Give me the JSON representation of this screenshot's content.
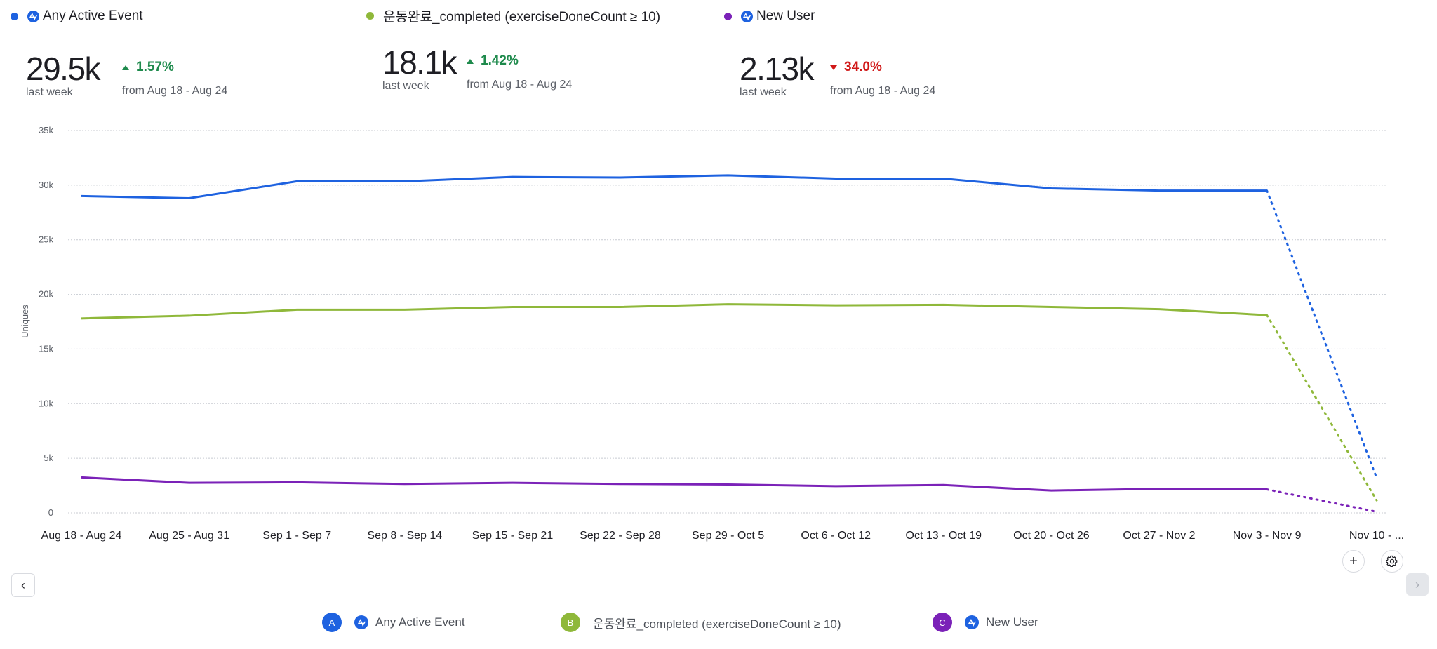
{
  "series_colors": {
    "A": "#1e62e0",
    "B": "#8fb83a",
    "C": "#7b22b8"
  },
  "top_legend": [
    {
      "label": "Any Active Event",
      "color": "#1e62e0",
      "icon": "amplitude-icon"
    },
    {
      "label": "운동완료_completed (exerciseDoneCount ≥ 10)",
      "color": "#8fb83a",
      "icon": null
    },
    {
      "label": "New User",
      "color": "#7b22b8",
      "icon": "amplitude-icon"
    }
  ],
  "metrics": [
    {
      "value": "29.5k",
      "period": "last week",
      "delta": "1.57%",
      "direction": "up",
      "from": "from Aug 18 - Aug 24"
    },
    {
      "value": "18.1k",
      "period": "last week",
      "delta": "1.42%",
      "direction": "up",
      "from": "from Aug 18 - Aug 24"
    },
    {
      "value": "2.13k",
      "period": "last week",
      "delta": "34.0%",
      "direction": "down",
      "from": "from Aug 18 - Aug 24"
    }
  ],
  "chart_data": {
    "type": "line",
    "title": "",
    "xlabel": "",
    "ylabel": "Uniques",
    "ylim": [
      0,
      35000
    ],
    "yticks": [
      0,
      5000,
      10000,
      15000,
      20000,
      25000,
      30000,
      35000
    ],
    "ytick_labels": [
      "0",
      "5k",
      "10k",
      "15k",
      "20k",
      "25k",
      "30k",
      "35k"
    ],
    "grid": true,
    "categories": [
      "Aug 18 - Aug 24",
      "Aug 25 - Aug 31",
      "Sep 1 - Sep 7",
      "Sep 8 - Sep 14",
      "Sep 15 - Sep 21",
      "Sep 22 - Sep 28",
      "Sep 29 - Oct 5",
      "Oct 6 - Oct 12",
      "Oct 13 - Oct 19",
      "Oct 20 - Oct 26",
      "Oct 27 - Nov 2",
      "Nov 3 - Nov 9",
      "Nov 10 - ..."
    ],
    "incomplete_last_point": true,
    "series": [
      {
        "name": "Any Active Event",
        "color": "#1e62e0",
        "values": [
          29000,
          28800,
          30350,
          30350,
          30750,
          30700,
          30900,
          30600,
          30600,
          29700,
          29500,
          29500,
          3200
        ]
      },
      {
        "name": "운동완료_completed (exerciseDoneCount ≥ 10)",
        "color": "#8fb83a",
        "values": [
          17800,
          18050,
          18600,
          18600,
          18850,
          18850,
          19100,
          19000,
          19050,
          18850,
          18650,
          18100,
          1150
        ]
      },
      {
        "name": "New User",
        "color": "#7b22b8",
        "values": [
          3250,
          2750,
          2800,
          2650,
          2750,
          2650,
          2600,
          2450,
          2550,
          2050,
          2200,
          2150,
          100
        ]
      }
    ]
  },
  "bottom_legend": [
    {
      "letter": "A",
      "label": "Any Active Event",
      "color": "#1e62e0",
      "icon": "amplitude-icon"
    },
    {
      "letter": "B",
      "label": "운동완료_completed (exerciseDoneCount ≥ 10)",
      "color": "#8fb83a",
      "icon": null
    },
    {
      "letter": "C",
      "label": "New User",
      "color": "#7b22b8",
      "icon": "amplitude-icon"
    }
  ],
  "controls": {
    "add": "+",
    "prev": "‹",
    "next": "›"
  }
}
